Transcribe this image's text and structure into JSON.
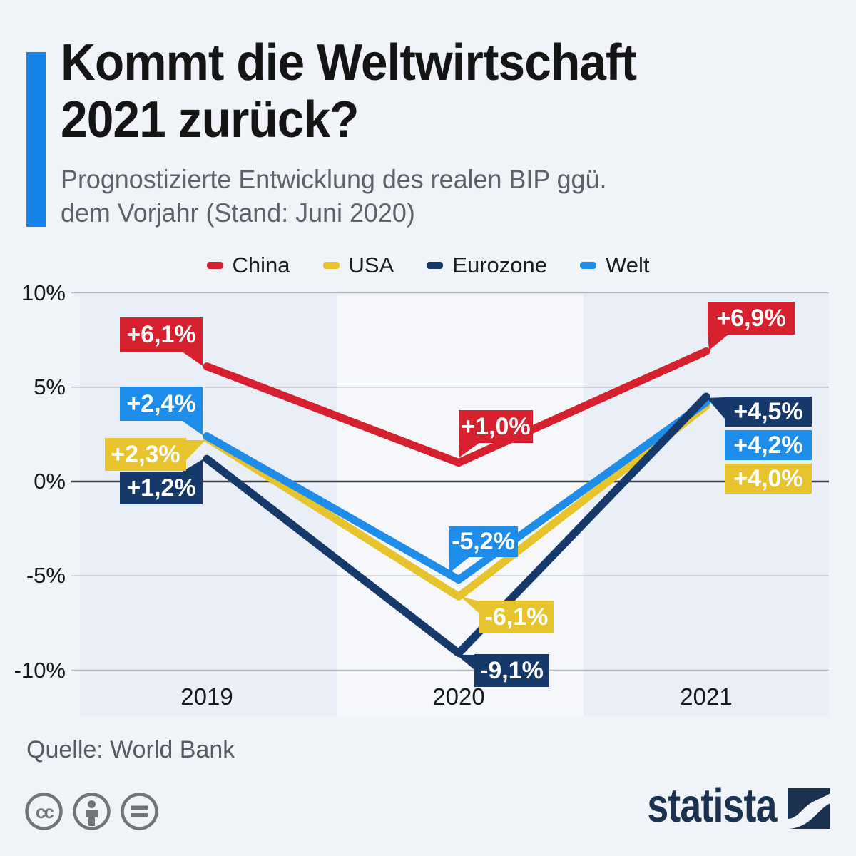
{
  "header": {
    "title_line1": "Kommt die Weltwirtschaft",
    "title_line2": "2021 zurück?",
    "subtitle_line1": "Prognostizierte Entwicklung des realen BIP ggü.",
    "subtitle_line2": "dem Vorjahr (Stand: Juni 2020)"
  },
  "colors": {
    "page_background": "#f0f4f8",
    "band_dark": "#e9eef7",
    "band_light": "#f5f7fb",
    "grid_line": "#b4bac3",
    "zero_line": "#3d4045",
    "accent_bar": "#1583e9",
    "title_text": "#151515",
    "subtitle_text": "#5c6267",
    "brand_navy": "#1a3150",
    "china_red": "#d6202e",
    "usa_yellow": "#e7c32e",
    "eurozone_navy": "#16396c",
    "welt_blue": "#1e8de9"
  },
  "chart_data": {
    "type": "line",
    "title": "Kommt die Weltwirtschaft 2021 zurück?",
    "subtitle": "Prognostizierte Entwicklung des realen BIP ggü. dem Vorjahr (Stand: Juni 2020)",
    "categories": [
      "2019",
      "2020",
      "2021"
    ],
    "series": [
      {
        "name": "China",
        "color": "#d6202e",
        "values": [
          6.1,
          1.0,
          6.9
        ],
        "labels": [
          "+6,1%",
          "+1,0%",
          "+6,9%"
        ]
      },
      {
        "name": "USA",
        "color": "#e7c32e",
        "values": [
          2.3,
          -6.1,
          4.0
        ],
        "labels": [
          "+2,3%",
          "-6,1%",
          "+4,0%"
        ]
      },
      {
        "name": "Welt",
        "color": "#1e8de9",
        "values": [
          2.4,
          -5.2,
          4.2
        ],
        "labels": [
          "+2,4%",
          "-5,2%",
          "+4,2%"
        ]
      },
      {
        "name": "Eurozone",
        "color": "#16396c",
        "values": [
          1.2,
          -9.1,
          4.5
        ],
        "labels": [
          "+1,2%",
          "-9,1%",
          "+4,5%"
        ]
      }
    ],
    "legend_order": [
      "China",
      "USA",
      "Eurozone",
      "Welt"
    ],
    "legend_position": "top-center",
    "yticks": [
      {
        "label": "10%",
        "value": 10
      },
      {
        "label": "5%",
        "value": 5
      },
      {
        "label": "0%",
        "value": 0
      },
      {
        "label": "-5%",
        "value": -5
      },
      {
        "label": "-10%",
        "value": -10
      }
    ],
    "ylim": [
      -10,
      10
    ],
    "xlabel": "",
    "ylabel": "",
    "grid": "horizontal",
    "unit": "%"
  },
  "footer": {
    "source": "Quelle: World Bank",
    "brand": "statista",
    "license_icons": [
      "cc-icon",
      "attribution-person-icon",
      "equal-sign-icon"
    ]
  }
}
